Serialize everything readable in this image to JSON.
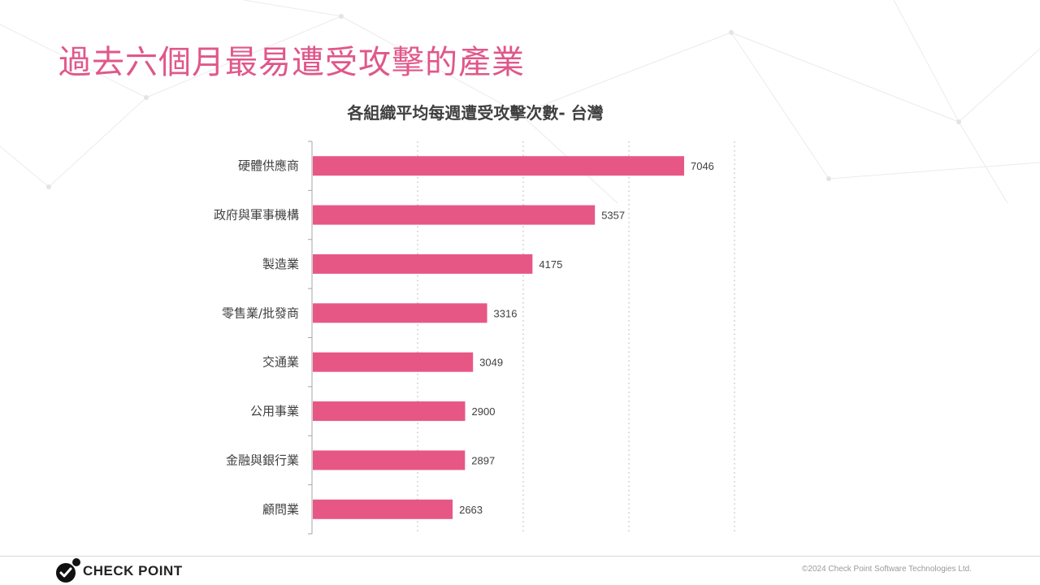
{
  "slide": {
    "title": "過去六個月最易遭受攻擊的產業",
    "copyright": "©2024 Check Point Software Technologies Ltd."
  },
  "brand": {
    "name": "CHECK POINT",
    "accent_color": "#e0578a",
    "bar_color": "#e75786"
  },
  "chart_data": {
    "type": "bar",
    "orientation": "horizontal",
    "title": "各組織平均每週遭受攻擊次數- 台灣",
    "categories": [
      "硬體供應商",
      "政府與軍事機構",
      "製造業",
      "零售業/批發商",
      "交通業",
      "公用事業",
      "金融與銀行業",
      "顧問業"
    ],
    "values": [
      7046,
      5357,
      4175,
      3316,
      3049,
      2900,
      2897,
      2663
    ],
    "xlim": [
      0,
      8000
    ],
    "grid": "vertical dotted",
    "data_labels": true,
    "x_tick_labels_shown": false
  }
}
